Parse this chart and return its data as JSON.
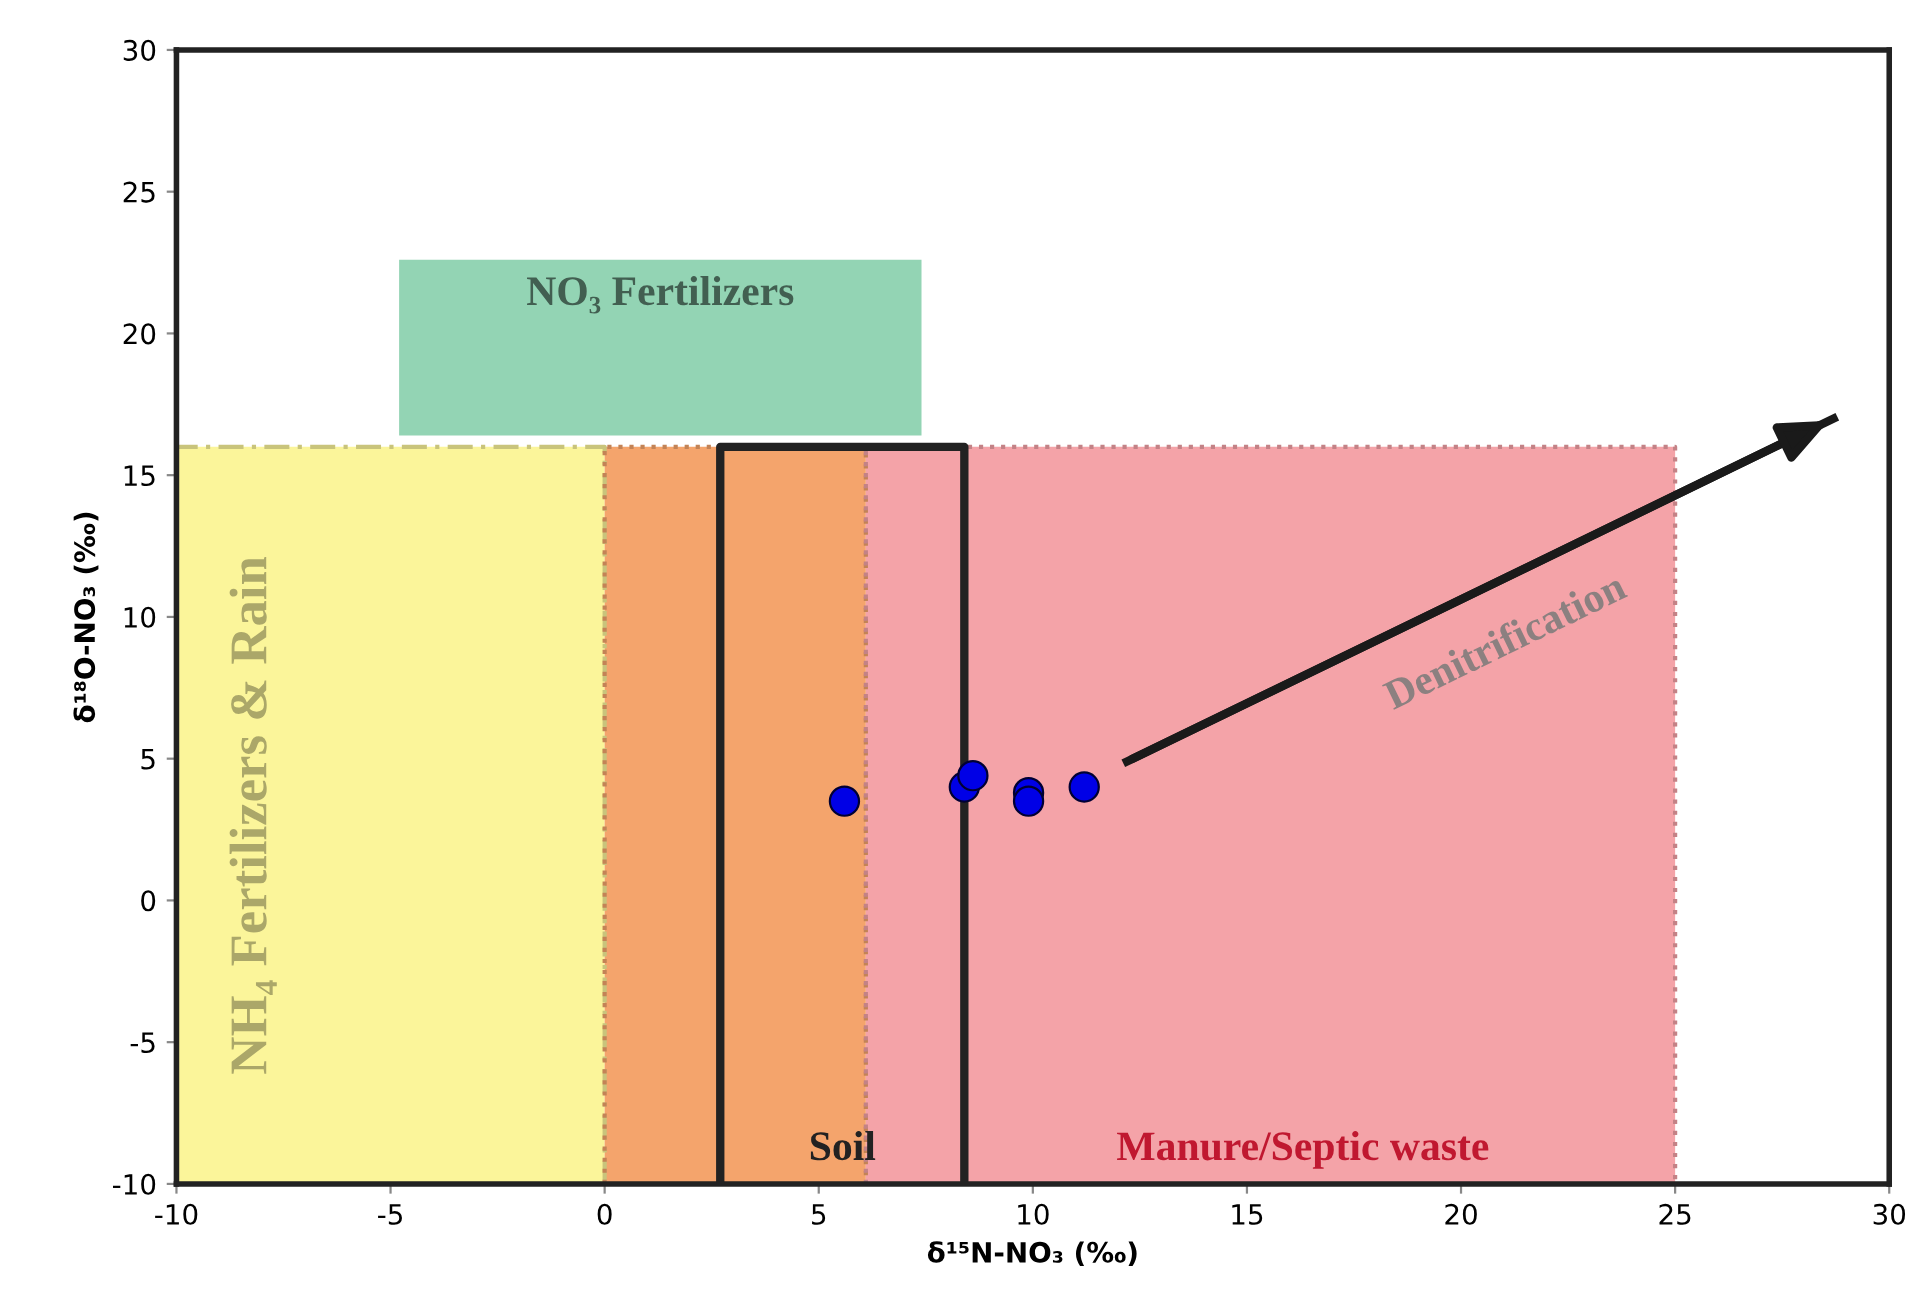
{
  "chart_data": {
    "type": "scatter",
    "xlabel": "δ¹⁵N-NO₃ (‰)",
    "ylabel": "δ¹⁸O-NO₃ (‰)",
    "xlim": [
      -10,
      30
    ],
    "ylim": [
      -10,
      30
    ],
    "xticks": [
      -10,
      -5,
      0,
      5,
      10,
      15,
      20,
      25,
      30
    ],
    "yticks": [
      -10,
      -5,
      0,
      5,
      10,
      15,
      20,
      25,
      30
    ],
    "grid": false,
    "legend": false,
    "series": [
      {
        "type": "area",
        "name": "NH₄ Fertilizers & Rain",
        "color": "#fbf59a",
        "x": [
          -10,
          -10,
          0,
          0
        ],
        "values": [
          -10,
          16,
          16,
          -10
        ],
        "line_style": "dashed"
      },
      {
        "type": "area",
        "color": "#f4a46c",
        "x": [
          0,
          0,
          6.1,
          6.1
        ],
        "values": [
          -10,
          16,
          16,
          -10
        ],
        "line_style": "dotted"
      },
      {
        "type": "area",
        "name": "Manure/Septic waste",
        "color": "#f4a3a8",
        "x": [
          6.1,
          6.1,
          25,
          25
        ],
        "values": [
          -10,
          16,
          16,
          -10
        ],
        "line_style": "dotted"
      },
      {
        "type": "area",
        "name": "NO₃ Fertilizers",
        "color": "#93d4b4",
        "x": [
          -4.8,
          -4.8,
          7.4,
          7.4
        ],
        "values": [
          16.4,
          22.6,
          22.6,
          16.4
        ]
      },
      {
        "type": "line",
        "name": "Soil",
        "color": "#222222",
        "x": [
          2.7,
          2.7,
          8.4,
          8.4
        ],
        "values": [
          -10,
          16,
          16,
          -10
        ],
        "line_style": "solid"
      },
      {
        "type": "line",
        "color": "#1a1a1a",
        "x": [
          12.2,
          28.7
        ],
        "values": [
          4.9,
          17.0
        ],
        "line_style": "solid"
      },
      {
        "color": "#0000e6",
        "x": [
          5.6,
          8.4,
          8.6,
          9.9,
          9.9,
          11.2
        ],
        "values": [
          3.5,
          4.0,
          4.4,
          3.8,
          3.5,
          4.0
        ],
        "marker": "circle"
      }
    ],
    "annotations": [
      "Denitrification"
    ]
  }
}
